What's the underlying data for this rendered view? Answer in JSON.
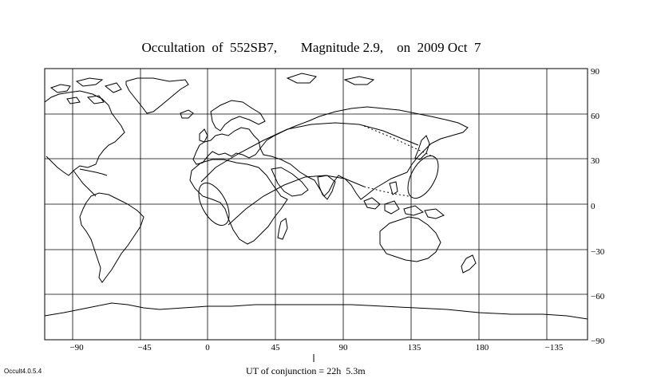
{
  "title": "Occultation  of  552SB7,       Magnitude 2.9,    on  2009 Oct  7",
  "x_ticks": [
    "−90",
    "−45",
    "0",
    "45",
    "90",
    "135",
    "180",
    "−135"
  ],
  "y_ticks": [
    "90",
    "60",
    "30",
    "0",
    "−30",
    "−60",
    "−90"
  ],
  "conjunction_label": "UT of conjunction = 22h  5.3m",
  "version": "Occult4.0.5.4",
  "map": {
    "projection": "equirectangular",
    "lon_range": [
      -110,
      250
    ],
    "lat_range": [
      -90,
      90
    ],
    "grid": true
  }
}
